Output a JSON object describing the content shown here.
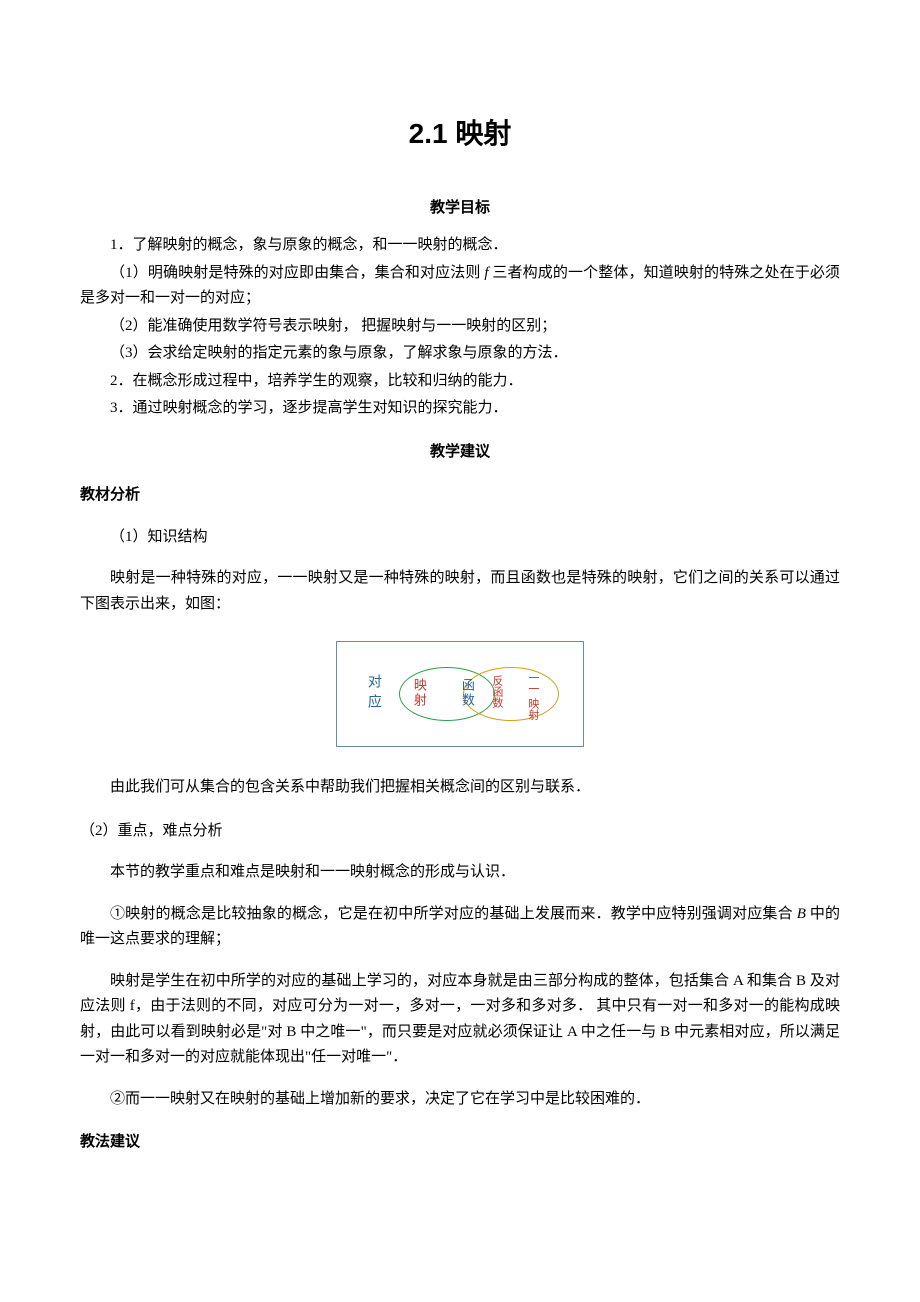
{
  "title": "2.1  映射",
  "sec1_title": "教学目标",
  "p1": "1．了解映射的概念，象与原象的概念，和一一映射的概念．",
  "p2_a": "（1）明确映射是特殊的对应即由集合，集合和对应法则 ",
  "p2_f": "f",
  "p2_b": " 三者构成的一个整体，知道映射的特殊之处在于必须是多对一和一对一的对应；",
  "p3": "（2）能准确使用数学符号表示映射，  把握映射与一一映射的区别；",
  "p4": "（3）会求给定映射的指定元素的象与原象，了解求象与原象的方法．",
  "p5": "2．在概念形成过程中，培养学生的观察，比较和归纳的能力．",
  "p6": "3．通过映射概念的学习，逐步提高学生对知识的探究能力．",
  "sec2_title": "教学建议",
  "sub1": "教材分析",
  "p7": "（1）知识结构",
  "p8": "映射是一种特殊的对应，一一映射又是一种特殊的映射，而且函数也是特殊的映射，它们之间的关系可以通过下图表示出来，如图：",
  "diagram": {
    "border_color": "#6a8aa8",
    "left_oval_color": "#2fa04a",
    "right_oval_color": "#d4a017",
    "duiying": "对应",
    "yingshe": "映射",
    "hanshu": "函数",
    "fanhanshu": "反函数",
    "yiyi": "一一",
    "yingshe2": "映射"
  },
  "p9": "由此我们可从集合的包含关系中帮助我们把握相关概念间的区别与联系．",
  "p10": "（2）重点，难点分析",
  "p11": "本节的教学重点和难点是映射和一一映射概念的形成与认识．",
  "p12_a": "①映射的概念是比较抽象的概念，它是在初中所学对应的基础上发展而来．教学中应特别强调对应集合 ",
  "p12_b": "B",
  "p12_c": " 中的唯一这点要求的理解；",
  "p13": "映射是学生在初中所学的对应的基础上学习的，对应本身就是由三部分构成的整体，包括集合 A 和集合 B 及对应法则 f，由于法则的不同，对应可分为一对一，多对一，一对多和多对多．    其中只有一对一和多对一的能构成映射，由此可以看到映射必是\"对 B 中之唯一\"，而只要是对应就必须保证让 A 中之任一与 B 中元素相对应，所以满足一对一和多对一的对应就能体现出\"任一对唯一\"．",
  "p14": "②而一一映射又在映射的基础上增加新的要求，决定了它在学习中是比较困难的．",
  "sub2": "教法建议"
}
